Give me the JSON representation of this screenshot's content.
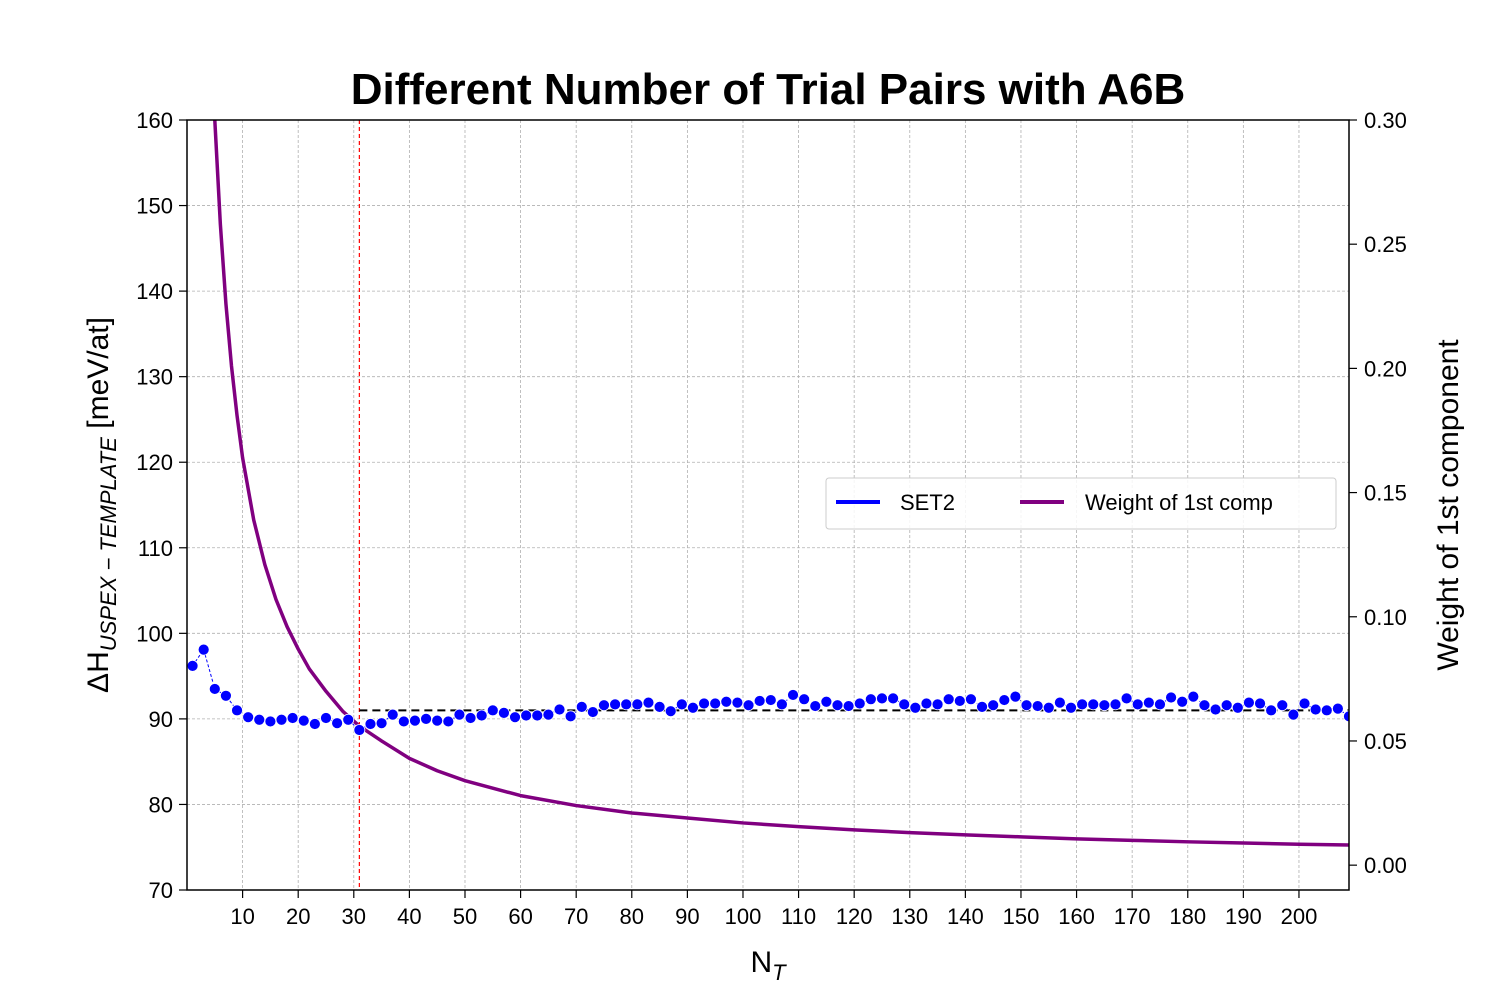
{
  "chart_data": {
    "type": "line",
    "title": "Different Number of Trial Pairs with A6B",
    "xlabel": "N",
    "xlabel_sub": "T",
    "ylabel_prefix": "ΔH",
    "ylabel_sub": "USPEX − TEMPLATE",
    "ylabel_suffix": " [meV/at]",
    "y2label": "Weight of 1st component",
    "xlim": [
      0,
      209
    ],
    "ylim": [
      70,
      160
    ],
    "y2lim": [
      -0.01,
      0.3
    ],
    "grid": true,
    "legend_placement": "center-right",
    "xticks": [
      "10",
      "20",
      "30",
      "40",
      "50",
      "60",
      "70",
      "80",
      "90",
      "100",
      "110",
      "120",
      "130",
      "140",
      "150",
      "160",
      "170",
      "180",
      "190",
      "200"
    ],
    "yticks": [
      "70",
      "80",
      "90",
      "100",
      "110",
      "120",
      "130",
      "140",
      "150",
      "160"
    ],
    "y2ticks": [
      "0.00",
      "0.05",
      "0.10",
      "0.15",
      "0.20",
      "0.25",
      "0.30"
    ],
    "reference_line_y": 91.0,
    "reference_line_xmin": 31,
    "marker_line_x": 31,
    "series": [
      {
        "name": "SET2",
        "color": "#0000ff",
        "axis": "left",
        "marker": "circle",
        "x": [
          1,
          3,
          5,
          7,
          9,
          11,
          13,
          15,
          17,
          19,
          21,
          23,
          25,
          27,
          29,
          31,
          33,
          35,
          37,
          39,
          41,
          43,
          45,
          47,
          49,
          51,
          53,
          55,
          57,
          59,
          61,
          63,
          65,
          67,
          69,
          71,
          73,
          75,
          77,
          79,
          81,
          83,
          85,
          87,
          89,
          91,
          93,
          95,
          97,
          99,
          101,
          103,
          105,
          107,
          109,
          111,
          113,
          115,
          117,
          119,
          121,
          123,
          125,
          127,
          129,
          131,
          133,
          135,
          137,
          139,
          141,
          143,
          145,
          147,
          149,
          151,
          153,
          155,
          157,
          159,
          161,
          163,
          165,
          167,
          169,
          171,
          173,
          175,
          177,
          179,
          181,
          183,
          185,
          187,
          189,
          191,
          193,
          195,
          197,
          199,
          201,
          203,
          205,
          207,
          209
        ],
        "y": [
          96.2,
          98.1,
          93.5,
          92.7,
          91.0,
          90.2,
          89.9,
          89.7,
          89.9,
          90.1,
          89.8,
          89.4,
          90.1,
          89.5,
          89.9,
          88.7,
          89.4,
          89.5,
          90.5,
          89.7,
          89.8,
          90.0,
          89.8,
          89.7,
          90.5,
          90.1,
          90.4,
          91.0,
          90.7,
          90.2,
          90.4,
          90.4,
          90.5,
          91.1,
          90.3,
          91.4,
          90.8,
          91.6,
          91.7,
          91.7,
          91.7,
          91.9,
          91.4,
          90.9,
          91.7,
          91.3,
          91.8,
          91.8,
          92.0,
          91.9,
          91.6,
          92.1,
          92.2,
          91.7,
          92.8,
          92.3,
          91.5,
          92.0,
          91.6,
          91.5,
          91.8,
          92.3,
          92.4,
          92.4,
          91.7,
          91.3,
          91.8,
          91.7,
          92.3,
          92.1,
          92.3,
          91.4,
          91.6,
          92.2,
          92.6,
          91.6,
          91.5,
          91.3,
          91.9,
          91.3,
          91.7,
          91.7,
          91.6,
          91.7,
          92.4,
          91.7,
          91.9,
          91.7,
          92.5,
          92.0,
          92.6,
          91.6,
          91.1,
          91.6,
          91.3,
          91.9,
          91.8,
          91.0,
          91.6,
          90.5,
          91.8,
          91.1,
          91.0,
          91.2,
          90.3
        ]
      },
      {
        "name": "Weight of 1st comp",
        "color": "#800080",
        "axis": "right",
        "marker": "none",
        "x": [
          5,
          6,
          7,
          8,
          9,
          10,
          12,
          14,
          16,
          18,
          20,
          22,
          25,
          28,
          31,
          35,
          40,
          45,
          50,
          55,
          60,
          70,
          80,
          90,
          100,
          110,
          120,
          130,
          140,
          150,
          160,
          170,
          180,
          190,
          200,
          209
        ],
        "y": [
          0.3,
          0.258,
          0.226,
          0.201,
          0.181,
          0.164,
          0.139,
          0.121,
          0.107,
          0.096,
          0.087,
          0.079,
          0.07,
          0.062,
          0.056,
          0.05,
          0.043,
          0.038,
          0.034,
          0.031,
          0.028,
          0.024,
          0.021,
          0.019,
          0.017,
          0.0155,
          0.0142,
          0.0131,
          0.0122,
          0.0114,
          0.0106,
          0.01,
          0.0094,
          0.0089,
          0.0084,
          0.0081
        ]
      }
    ]
  }
}
